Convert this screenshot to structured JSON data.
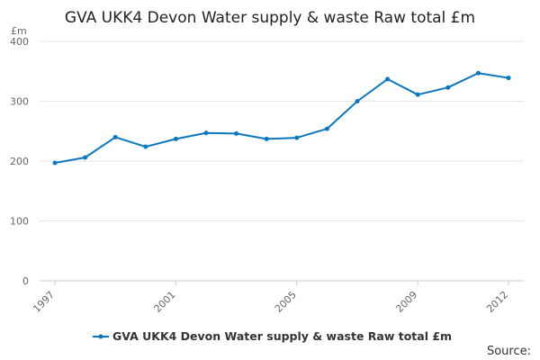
{
  "chart_data": {
    "type": "line",
    "title": "GVA UKK4 Devon Water supply & waste Raw total £m",
    "y_unit_label": "£m",
    "x": [
      1997,
      1998,
      1999,
      2000,
      2001,
      2002,
      2003,
      2004,
      2005,
      2006,
      2007,
      2008,
      2009,
      2010,
      2011,
      2012
    ],
    "x_tick_labels": [
      "1997",
      "2001",
      "2005",
      "2009",
      "2012"
    ],
    "y_tick_labels": [
      "0",
      "100",
      "200",
      "300",
      "400"
    ],
    "ylim": [
      0,
      400
    ],
    "grid": true,
    "series": [
      {
        "name": "GVA UKK4 Devon Water supply & waste Raw total £m",
        "color": "#0b77c0",
        "values": [
          197,
          206,
          240,
          224,
          237,
          247,
          246,
          237,
          239,
          254,
          300,
          337,
          311,
          323,
          347,
          339
        ]
      }
    ],
    "legend_position": "bottom-center",
    "source_label": "Source:"
  }
}
